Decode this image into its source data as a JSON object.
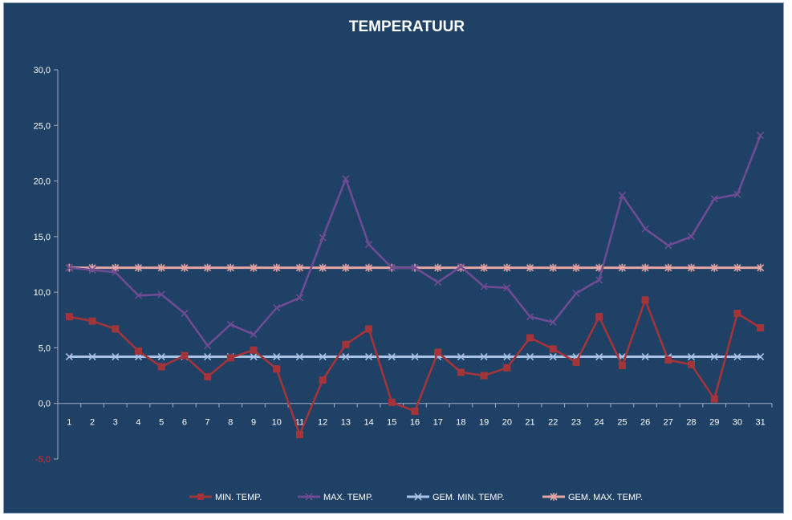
{
  "chart_data": {
    "type": "line",
    "title": "TEMPERATUUR",
    "x": [
      1,
      2,
      3,
      4,
      5,
      6,
      7,
      8,
      9,
      10,
      11,
      12,
      13,
      14,
      15,
      16,
      17,
      18,
      19,
      20,
      21,
      22,
      23,
      24,
      25,
      26,
      27,
      28,
      29,
      30,
      31
    ],
    "ylim": [
      -5,
      30
    ],
    "yticks": [
      30,
      25,
      20,
      15,
      10,
      5,
      0,
      -5
    ],
    "ytick_labels": [
      "30,0",
      "25,0",
      "20,0",
      "15,0",
      "10,0",
      "5,0",
      "0,0",
      "-5,0"
    ],
    "grid": false,
    "legend_position": "bottom",
    "series": [
      {
        "name": "MIN. TEMP.",
        "color": "#a3343a",
        "marker": "square",
        "values": [
          7.8,
          7.4,
          6.7,
          4.7,
          3.3,
          4.3,
          2.4,
          4.1,
          4.8,
          3.1,
          -2.8,
          2.1,
          5.3,
          6.7,
          0.1,
          -0.7,
          4.6,
          2.8,
          2.5,
          3.2,
          5.9,
          4.9,
          3.7,
          7.8,
          3.4,
          9.3,
          3.9,
          3.5,
          0.4,
          8.1,
          6.8
        ]
      },
      {
        "name": "MAX. TEMP.",
        "color": "#6e4b93",
        "marker": "x",
        "values": [
          12.2,
          12.0,
          11.8,
          9.7,
          9.8,
          8.1,
          5.2,
          7.1,
          6.2,
          8.6,
          9.5,
          14.9,
          20.2,
          14.3,
          12.2,
          12.2,
          10.9,
          12.3,
          10.5,
          10.4,
          7.8,
          7.3,
          9.9,
          11.1,
          18.7,
          15.7,
          14.2,
          15.0,
          18.4,
          18.8,
          24.1
        ]
      },
      {
        "name": "GEM. MIN. TEMP.",
        "color": "#a9c3e6",
        "marker": "x",
        "values": [
          4.2,
          4.2,
          4.2,
          4.2,
          4.2,
          4.2,
          4.2,
          4.2,
          4.2,
          4.2,
          4.2,
          4.2,
          4.2,
          4.2,
          4.2,
          4.2,
          4.2,
          4.2,
          4.2,
          4.2,
          4.2,
          4.2,
          4.2,
          4.2,
          4.2,
          4.2,
          4.2,
          4.2,
          4.2,
          4.2,
          4.2
        ]
      },
      {
        "name": "GEM. MAX. TEMP.",
        "color": "#e6a5a5",
        "marker": "star",
        "values": [
          12.2,
          12.2,
          12.2,
          12.2,
          12.2,
          12.2,
          12.2,
          12.2,
          12.2,
          12.2,
          12.2,
          12.2,
          12.2,
          12.2,
          12.2,
          12.2,
          12.2,
          12.2,
          12.2,
          12.2,
          12.2,
          12.2,
          12.2,
          12.2,
          12.2,
          12.2,
          12.2,
          12.2,
          12.2,
          12.2,
          12.2
        ]
      }
    ]
  }
}
